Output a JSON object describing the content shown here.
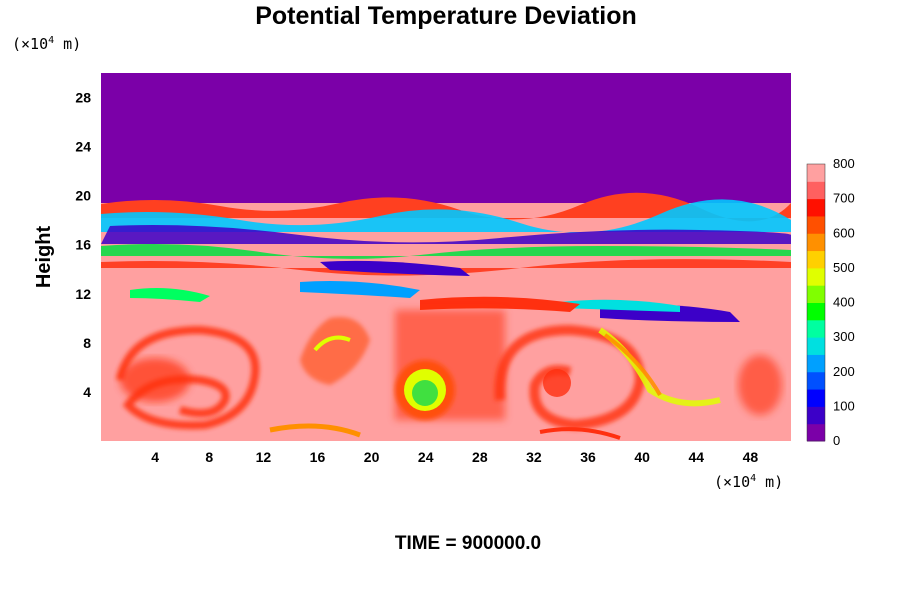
{
  "chart_data": {
    "type": "heatmap",
    "title": "Potential Temperature Deviation",
    "ylabel": "Height",
    "x_unit": {
      "prefix": "(×10",
      "exp": "4",
      "suffix": " m)"
    },
    "y_unit": {
      "prefix": "(×10",
      "exp": "4",
      "suffix": " m)"
    },
    "xlim": [
      0,
      51
    ],
    "ylim": [
      0,
      30
    ],
    "x_ticks": [
      4,
      8,
      12,
      16,
      20,
      24,
      28,
      32,
      36,
      40,
      44,
      48
    ],
    "y_ticks": [
      4,
      8,
      12,
      16,
      20,
      24,
      28
    ],
    "colorbar": {
      "ticks": [
        0,
        100,
        200,
        300,
        400,
        500,
        600,
        700,
        800
      ],
      "range": [
        0,
        800
      ],
      "levels": 16,
      "colormap": [
        "#7b00a8",
        "#3c00c8",
        "#0000ff",
        "#0050ff",
        "#00a0ff",
        "#00e0e0",
        "#00ffa0",
        "#00ff00",
        "#80ff00",
        "#e0ff00",
        "#ffd000",
        "#ff9000",
        "#ff5000",
        "#ff1000",
        "#ff6060",
        "#ffa0a0"
      ]
    },
    "time_label": "TIME = 900000.0",
    "colors": {
      "upper_layer": "#7b00a8",
      "lower_layer": "#ffa0a0",
      "warm_core": "#ff3010",
      "bubble_center": "#40e040"
    }
  }
}
